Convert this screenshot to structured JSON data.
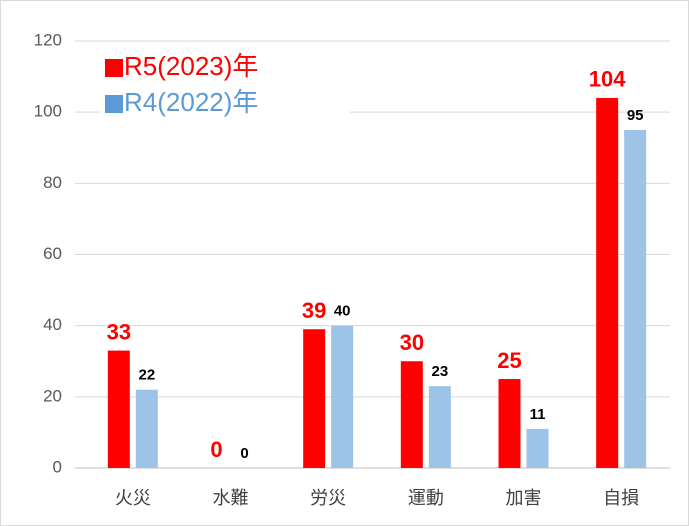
{
  "chart_data": {
    "type": "bar",
    "categories": [
      "火災",
      "水難",
      "労災",
      "運動",
      "加害",
      "自損"
    ],
    "series": [
      {
        "name": "R5(2023)年",
        "color": "#ff0000",
        "legend_color": "#ff0000",
        "label_color": "#ff0000",
        "values": [
          33,
          0,
          39,
          30,
          25,
          104
        ]
      },
      {
        "name": "R4(2022)年",
        "color": "#9dc3e6",
        "legend_color": "#5b9bd5",
        "label_color": "#000000",
        "values": [
          22,
          0,
          40,
          23,
          11,
          95
        ]
      }
    ],
    "ylim": [
      0,
      120
    ],
    "yticks": [
      0,
      20,
      40,
      60,
      80,
      100,
      120
    ],
    "grid": true,
    "legend": "upper left"
  }
}
